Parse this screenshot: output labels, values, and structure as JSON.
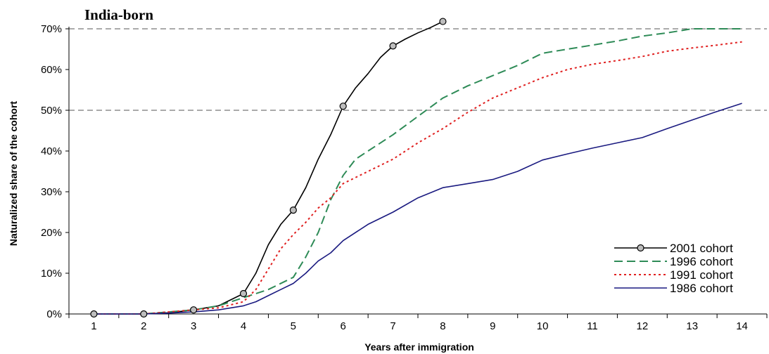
{
  "chart_data": {
    "type": "line",
    "title": "India-born",
    "xlabel": "Years after immigration",
    "ylabel": "Naturalized share of the cohort",
    "x_ticks": [
      "1",
      "2",
      "3",
      "4",
      "5",
      "6",
      "7",
      "8",
      "9",
      "10",
      "11",
      "12",
      "13",
      "14"
    ],
    "y_ticks": [
      "0%",
      "10%",
      "20%",
      "30%",
      "40%",
      "50%",
      "60%",
      "70%"
    ],
    "xlim": [
      1,
      14
    ],
    "ylim": [
      0,
      70
    ],
    "reference_lines": [
      50,
      70
    ],
    "legend_position": "bottom-right",
    "series": [
      {
        "name": "2001 cohort",
        "color": "#000000",
        "style": "solid-markers",
        "x": [
          1,
          2,
          2.5,
          3,
          3.5,
          4,
          4.25,
          4.5,
          4.75,
          5,
          5.25,
          5.5,
          5.75,
          6,
          6.25,
          6.5,
          6.75,
          7,
          7.25,
          7.5,
          7.75,
          8
        ],
        "y": [
          0,
          0,
          0.3,
          1,
          2,
          5,
          10,
          17,
          22,
          25.5,
          31,
          38,
          44,
          51,
          55.5,
          59,
          63,
          65.8,
          67.5,
          69,
          70.3,
          71.8
        ],
        "markers": [
          1,
          2,
          3,
          4,
          5,
          6,
          7,
          8
        ]
      },
      {
        "name": "1996 cohort",
        "color": "#2e8b57",
        "style": "dashed",
        "x": [
          1,
          2,
          2.5,
          3,
          3.5,
          4,
          4.5,
          5,
          5.25,
          5.5,
          5.75,
          6,
          6.25,
          6.5,
          7,
          7.5,
          8,
          8.5,
          9,
          9.5,
          10,
          10.5,
          11,
          11.5,
          12,
          12.5,
          13,
          13.5,
          14
        ],
        "y": [
          0,
          0,
          0.5,
          1,
          2,
          4,
          6,
          9,
          14,
          20,
          28,
          34,
          38,
          40,
          44,
          48.5,
          53,
          56,
          58.5,
          61,
          64,
          65,
          66,
          67,
          68.2,
          69,
          70,
          70,
          70
        ]
      },
      {
        "name": "1991 cohort",
        "color": "#e02020",
        "style": "dotted",
        "x": [
          1,
          2,
          2.5,
          3,
          3.5,
          4,
          4.25,
          4.5,
          4.75,
          5,
          5.25,
          5.5,
          5.75,
          6,
          6.5,
          7,
          7.5,
          8,
          8.5,
          9,
          9.5,
          10,
          10.5,
          11,
          11.5,
          12,
          12.5,
          13,
          13.5,
          14
        ],
        "y": [
          0,
          0,
          0.5,
          1,
          1.5,
          3,
          6,
          11,
          16,
          19.5,
          22.5,
          26,
          28.5,
          32,
          35,
          38,
          42,
          45.5,
          49.5,
          53,
          55.5,
          58,
          60,
          61.3,
          62.2,
          63.2,
          64.5,
          65.3,
          66,
          66.8
        ]
      },
      {
        "name": "1986 cohort",
        "color": "#1a1a80",
        "style": "solid",
        "x": [
          1,
          2,
          2.5,
          3,
          3.5,
          4,
          4.25,
          4.5,
          4.75,
          5,
          5.25,
          5.5,
          5.75,
          6,
          6.5,
          7,
          7.5,
          8,
          8.5,
          9,
          9.5,
          10,
          10.5,
          11,
          11.5,
          12,
          12.5,
          13,
          13.5,
          14
        ],
        "y": [
          0,
          0,
          0.2,
          0.5,
          1,
          2,
          3,
          4.5,
          6,
          7.5,
          10,
          13,
          15,
          18,
          22,
          25,
          28.5,
          31,
          32,
          33,
          35,
          37.8,
          39.3,
          40.7,
          42,
          43.3,
          45.5,
          47.6,
          49.7,
          51.7
        ]
      }
    ]
  }
}
